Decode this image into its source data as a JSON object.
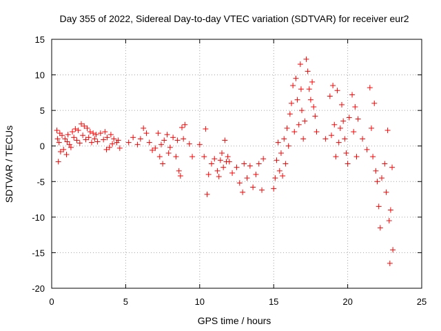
{
  "chart_data": {
    "type": "scatter",
    "title": "Day 355 of 2022, Sidereal Day-to-day VTEC variation (SDTVAR) for receiver eur2",
    "xlabel": "GPS time / hours",
    "ylabel": "SDTVAR / TECUs",
    "xlim": [
      0,
      25
    ],
    "ylim": [
      -20,
      15
    ],
    "xticks": [
      0,
      5,
      10,
      15,
      20,
      25
    ],
    "yticks": [
      -20,
      -15,
      -10,
      -5,
      0,
      5,
      10,
      15
    ],
    "xtick_labels": [
      "0",
      "5",
      "10",
      "15",
      "20",
      "25"
    ],
    "ytick_labels": [
      "-20",
      "-15",
      "-10",
      "-5",
      "0",
      "5",
      "10",
      "15"
    ],
    "grid": true,
    "marker": "+",
    "color": "#ff0000",
    "series": [
      {
        "name": "SDTVAR",
        "points": [
          [
            0.35,
            2.2
          ],
          [
            0.4,
            1.0
          ],
          [
            0.45,
            -2.2
          ],
          [
            0.5,
            0.5
          ],
          [
            0.55,
            1.8
          ],
          [
            0.6,
            -0.8
          ],
          [
            0.7,
            1.5
          ],
          [
            0.8,
            -0.5
          ],
          [
            0.9,
            1.0
          ],
          [
            1.0,
            -1.2
          ],
          [
            1.05,
            0.6
          ],
          [
            1.1,
            1.6
          ],
          [
            1.2,
            0.2
          ],
          [
            1.3,
            -0.2
          ],
          [
            1.4,
            2.0
          ],
          [
            1.5,
            1.2
          ],
          [
            1.6,
            2.4
          ],
          [
            1.7,
            0.8
          ],
          [
            1.8,
            2.2
          ],
          [
            1.9,
            0.4
          ],
          [
            2.0,
            3.1
          ],
          [
            2.1,
            1.5
          ],
          [
            2.2,
            2.8
          ],
          [
            2.3,
            0.9
          ],
          [
            2.4,
            2.5
          ],
          [
            2.5,
            1.2
          ],
          [
            2.6,
            2.0
          ],
          [
            2.7,
            0.5
          ],
          [
            2.8,
            1.8
          ],
          [
            2.9,
            1.0
          ],
          [
            3.0,
            1.6
          ],
          [
            3.1,
            0.6
          ],
          [
            3.3,
            1.8
          ],
          [
            3.5,
            0.9
          ],
          [
            3.6,
            2.0
          ],
          [
            3.7,
            -0.5
          ],
          [
            3.75,
            1.2
          ],
          [
            3.9,
            -0.2
          ],
          [
            4.0,
            1.6
          ],
          [
            4.1,
            0.3
          ],
          [
            4.2,
            1.0
          ],
          [
            4.4,
            0.5
          ],
          [
            4.5,
            0.8
          ],
          [
            4.6,
            -0.3
          ],
          [
            5.2,
            0.5
          ],
          [
            5.5,
            1.2
          ],
          [
            5.8,
            0.2
          ],
          [
            6.0,
            1.0
          ],
          [
            6.2,
            2.5
          ],
          [
            6.4,
            1.8
          ],
          [
            6.6,
            0.5
          ],
          [
            6.8,
            -0.6
          ],
          [
            7.0,
            -0.3
          ],
          [
            7.2,
            1.8
          ],
          [
            7.3,
            -1.5
          ],
          [
            7.4,
            0.2
          ],
          [
            7.5,
            -2.5
          ],
          [
            7.6,
            0.8
          ],
          [
            7.8,
            1.6
          ],
          [
            7.9,
            -1.0
          ],
          [
            8.0,
            -0.2
          ],
          [
            8.2,
            1.2
          ],
          [
            8.4,
            -1.5
          ],
          [
            8.5,
            0.8
          ],
          [
            8.6,
            -3.5
          ],
          [
            8.7,
            -4.2
          ],
          [
            8.8,
            2.6
          ],
          [
            8.9,
            1.0
          ],
          [
            9.0,
            3.0
          ],
          [
            9.3,
            0.3
          ],
          [
            9.5,
            -1.5
          ],
          [
            10.0,
            0.2
          ],
          [
            10.3,
            -1.5
          ],
          [
            10.4,
            2.4
          ],
          [
            10.5,
            -6.8
          ],
          [
            10.6,
            -4.0
          ],
          [
            10.8,
            -2.5
          ],
          [
            11.0,
            -1.8
          ],
          [
            11.2,
            -3.5
          ],
          [
            11.3,
            -4.3
          ],
          [
            11.4,
            -2.0
          ],
          [
            11.5,
            -1.0
          ],
          [
            11.6,
            -3.0
          ],
          [
            11.7,
            0.8
          ],
          [
            11.8,
            -2.2
          ],
          [
            11.9,
            -1.5
          ],
          [
            12.0,
            -2.2
          ],
          [
            12.2,
            -3.8
          ],
          [
            12.5,
            -3.0
          ],
          [
            12.7,
            -5.2
          ],
          [
            12.9,
            -6.5
          ],
          [
            13.0,
            -2.5
          ],
          [
            13.2,
            -4.5
          ],
          [
            13.4,
            -2.8
          ],
          [
            13.6,
            -5.8
          ],
          [
            13.8,
            -4.0
          ],
          [
            14.0,
            -2.5
          ],
          [
            14.2,
            -6.2
          ],
          [
            14.3,
            -1.8
          ],
          [
            15.0,
            -6.0
          ],
          [
            15.1,
            -4.5
          ],
          [
            15.2,
            -2.0
          ],
          [
            15.3,
            0.5
          ],
          [
            15.4,
            -3.5
          ],
          [
            15.5,
            -1.0
          ],
          [
            15.6,
            -4.2
          ],
          [
            15.7,
            1.0
          ],
          [
            15.8,
            -2.5
          ],
          [
            15.9,
            2.5
          ],
          [
            16.0,
            0.0
          ],
          [
            16.1,
            4.5
          ],
          [
            16.2,
            6.0
          ],
          [
            16.3,
            8.5
          ],
          [
            16.4,
            2.0
          ],
          [
            16.5,
            9.5
          ],
          [
            16.6,
            6.5
          ],
          [
            16.7,
            3.0
          ],
          [
            16.8,
            11.5
          ],
          [
            16.85,
            8.0
          ],
          [
            16.9,
            5.0
          ],
          [
            17.0,
            1.0
          ],
          [
            17.1,
            3.5
          ],
          [
            17.2,
            12.2
          ],
          [
            17.3,
            10.5
          ],
          [
            17.4,
            8.0
          ],
          [
            17.5,
            6.5
          ],
          [
            17.6,
            9.0
          ],
          [
            17.7,
            5.5
          ],
          [
            17.8,
            4.2
          ],
          [
            17.9,
            2.0
          ],
          [
            18.5,
            1.0
          ],
          [
            18.8,
            7.0
          ],
          [
            18.9,
            1.5
          ],
          [
            19.0,
            8.5
          ],
          [
            19.1,
            3.0
          ],
          [
            19.2,
            -1.5
          ],
          [
            19.3,
            7.8
          ],
          [
            19.4,
            0.5
          ],
          [
            19.5,
            2.5
          ],
          [
            19.6,
            5.8
          ],
          [
            19.7,
            3.5
          ],
          [
            19.8,
            1.0
          ],
          [
            19.9,
            -1.0
          ],
          [
            20.0,
            -2.5
          ],
          [
            20.1,
            4.0
          ],
          [
            20.3,
            7.2
          ],
          [
            20.4,
            2.0
          ],
          [
            20.5,
            5.5
          ],
          [
            20.6,
            -1.5
          ],
          [
            20.7,
            3.8
          ],
          [
            21.0,
            1.0
          ],
          [
            21.3,
            -0.5
          ],
          [
            21.5,
            8.2
          ],
          [
            21.6,
            2.5
          ],
          [
            21.7,
            -1.5
          ],
          [
            21.8,
            6.0
          ],
          [
            21.9,
            -3.5
          ],
          [
            22.0,
            -5.0
          ],
          [
            22.1,
            -8.5
          ],
          [
            22.2,
            -11.5
          ],
          [
            22.3,
            -4.5
          ],
          [
            22.5,
            -2.5
          ],
          [
            22.6,
            -6.5
          ],
          [
            22.7,
            2.2
          ],
          [
            22.8,
            -10.5
          ],
          [
            22.85,
            -16.5
          ],
          [
            22.9,
            -9.0
          ],
          [
            23.0,
            -3.0
          ],
          [
            23.05,
            -14.6
          ]
        ]
      }
    ]
  }
}
